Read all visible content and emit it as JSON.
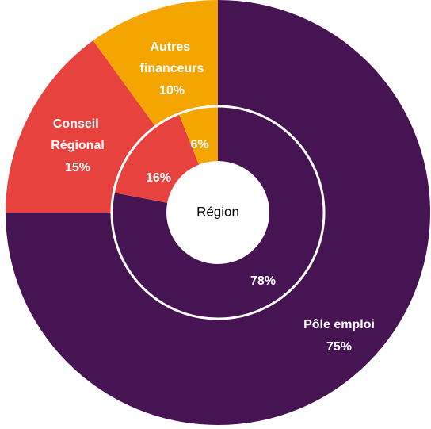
{
  "chart_data": [
    {
      "type": "pie",
      "categories": [
        "Pôle emploi",
        "Conseil Régional",
        "Autres financeurs"
      ],
      "values": [
        75,
        15,
        10
      ],
      "value_labels": [
        "75%",
        "15%",
        "10%"
      ],
      "colors": [
        "#461452",
        "#e8423f",
        "#f5a500"
      ]
    },
    {
      "type": "pie",
      "center_label": "Région",
      "values": [
        78,
        16,
        6
      ],
      "value_labels": [
        "78%",
        "16%",
        "6%"
      ],
      "colors": [
        "#461452",
        "#e8423f",
        "#f5a500"
      ]
    }
  ]
}
